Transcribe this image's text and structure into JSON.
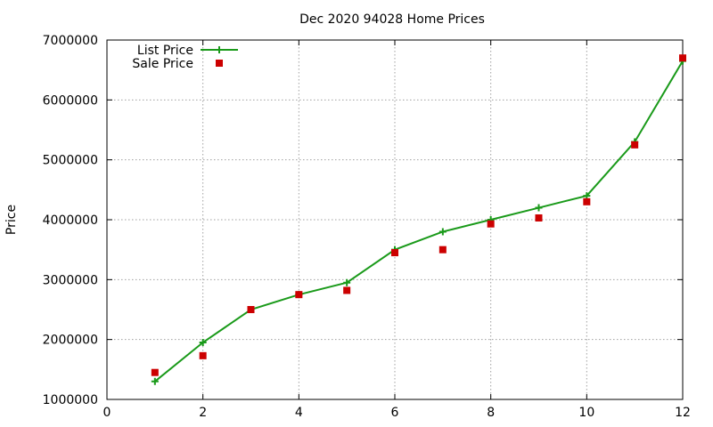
{
  "chart_data": {
    "type": "line",
    "title": "Dec 2020 94028 Home Prices",
    "xlabel": "",
    "ylabel": "Price",
    "xlim": [
      0,
      12
    ],
    "ylim": [
      1000000,
      7000000
    ],
    "x_ticks": [
      "0",
      "2",
      "4",
      "6",
      "8",
      "10",
      "12"
    ],
    "y_ticks": [
      "1000000",
      "2000000",
      "3000000",
      "4000000",
      "5000000",
      "6000000",
      "7000000"
    ],
    "grid": true,
    "legend_position": "top-left",
    "series": [
      {
        "name": "List Price",
        "style": "line+plus",
        "color": "#1a9a1a",
        "x": [
          1,
          2,
          3,
          4,
          5,
          6,
          7,
          8,
          9,
          10,
          11,
          12
        ],
        "values": [
          1300000,
          1950000,
          2500000,
          2750000,
          2950000,
          3500000,
          3800000,
          4000000,
          4200000,
          4400000,
          5300000,
          6650000
        ]
      },
      {
        "name": "Sale Price",
        "style": "square-points",
        "color": "#cc0000",
        "x": [
          1,
          2,
          3,
          4,
          5,
          6,
          7,
          8,
          9,
          10,
          11,
          12
        ],
        "values": [
          1450000,
          1730000,
          2500000,
          2750000,
          2820000,
          3450000,
          3500000,
          3930000,
          4030000,
          4300000,
          5250000,
          6700000
        ]
      }
    ]
  }
}
